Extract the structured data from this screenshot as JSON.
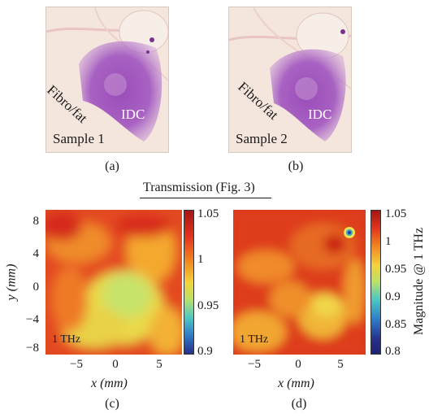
{
  "photos": [
    {
      "tissue_label": "Fibro/fat",
      "tumor_label": "IDC",
      "sample_label": "Sample 1",
      "caption": "(a)"
    },
    {
      "tissue_label": "Fibro/fat",
      "tumor_label": "IDC",
      "sample_label": "Sample 2",
      "caption": "(b)"
    }
  ],
  "section_title": "Transmission (Fig. 3)",
  "maps": [
    {
      "freq_label": "1 THz",
      "caption": "(c)",
      "colorbar": {
        "ticks": [
          "1.05",
          "1",
          "0.95",
          "0.9"
        ],
        "range": [
          0.9,
          1.05
        ]
      }
    },
    {
      "freq_label": "1 THz",
      "caption": "(d)",
      "colorbar": {
        "ticks": [
          "1.05",
          "1",
          "0.95",
          "0.9",
          "0.85",
          "0.8"
        ],
        "range": [
          0.8,
          1.05
        ],
        "label": "Magnitude @ 1 THz"
      }
    }
  ],
  "axes": {
    "y_label": "y (mm)",
    "x_label": "x (mm)",
    "y_ticks": [
      "8",
      "4",
      "0",
      "−4",
      "−8"
    ],
    "x_ticks": [
      "−5",
      "0",
      "5"
    ]
  },
  "colors": {
    "photo_bg": "#f3e2d8",
    "stain": "#8a3fa8",
    "heat_high": "#d2261a",
    "heat_mid": "#e9e04a",
    "heat_low": "#2a3f9e"
  }
}
